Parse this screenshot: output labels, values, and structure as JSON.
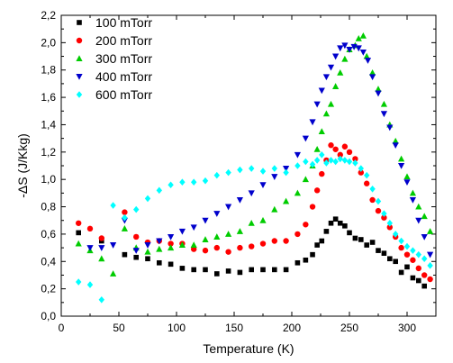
{
  "chart_data": {
    "type": "scatter",
    "title": "",
    "xlabel": "Temperature (K)",
    "ylabel": "-ΔS (J/Kkg)",
    "xlim": [
      0,
      325
    ],
    "ylim": [
      0.0,
      2.2
    ],
    "xticks": [
      0,
      50,
      100,
      150,
      200,
      250,
      300
    ],
    "xtick_labels": [
      "0",
      "50",
      "100",
      "150",
      "200",
      "250",
      "300"
    ],
    "yticks": [
      0.0,
      0.2,
      0.4,
      0.6,
      0.8,
      1.0,
      1.2,
      1.4,
      1.6,
      1.8,
      2.0,
      2.2
    ],
    "ytick_labels": [
      "0,0",
      "0,2",
      "0,4",
      "0,6",
      "0,8",
      "1,0",
      "1,2",
      "1,4",
      "1,6",
      "1,8",
      "2,0",
      "2,2"
    ],
    "grid": false,
    "legend_position": "top-left",
    "series": [
      {
        "name": "100 mTorr",
        "color": "#000000",
        "marker": "square",
        "points": [
          [
            15,
            0.61
          ],
          [
            35,
            0.55
          ],
          [
            55,
            0.45
          ],
          [
            65,
            0.43
          ],
          [
            75,
            0.42
          ],
          [
            85,
            0.39
          ],
          [
            95,
            0.38
          ],
          [
            105,
            0.35
          ],
          [
            115,
            0.34
          ],
          [
            125,
            0.34
          ],
          [
            135,
            0.31
          ],
          [
            145,
            0.33
          ],
          [
            155,
            0.32
          ],
          [
            165,
            0.34
          ],
          [
            175,
            0.34
          ],
          [
            185,
            0.34
          ],
          [
            195,
            0.34
          ],
          [
            205,
            0.39
          ],
          [
            212,
            0.41
          ],
          [
            218,
            0.45
          ],
          [
            222,
            0.52
          ],
          [
            226,
            0.55
          ],
          [
            230,
            0.62
          ],
          [
            234,
            0.68
          ],
          [
            238,
            0.71
          ],
          [
            242,
            0.68
          ],
          [
            246,
            0.66
          ],
          [
            250,
            0.61
          ],
          [
            255,
            0.57
          ],
          [
            260,
            0.56
          ],
          [
            265,
            0.52
          ],
          [
            270,
            0.54
          ],
          [
            275,
            0.48
          ],
          [
            280,
            0.46
          ],
          [
            285,
            0.42
          ],
          [
            290,
            0.4
          ],
          [
            295,
            0.32
          ],
          [
            300,
            0.36
          ],
          [
            305,
            0.28
          ],
          [
            310,
            0.26
          ],
          [
            315,
            0.22
          ]
        ]
      },
      {
        "name": "200 mTorr",
        "color": "#ff0000",
        "marker": "circle",
        "points": [
          [
            15,
            0.68
          ],
          [
            25,
            0.64
          ],
          [
            35,
            0.57
          ],
          [
            55,
            0.76
          ],
          [
            65,
            0.58
          ],
          [
            75,
            0.54
          ],
          [
            85,
            0.55
          ],
          [
            95,
            0.53
          ],
          [
            105,
            0.53
          ],
          [
            115,
            0.49
          ],
          [
            125,
            0.48
          ],
          [
            135,
            0.5
          ],
          [
            145,
            0.47
          ],
          [
            155,
            0.5
          ],
          [
            165,
            0.51
          ],
          [
            175,
            0.53
          ],
          [
            185,
            0.55
          ],
          [
            195,
            0.55
          ],
          [
            205,
            0.6
          ],
          [
            212,
            0.67
          ],
          [
            218,
            0.8
          ],
          [
            222,
            0.92
          ],
          [
            226,
            1.04
          ],
          [
            230,
            1.14
          ],
          [
            234,
            1.25
          ],
          [
            238,
            1.22
          ],
          [
            242,
            1.18
          ],
          [
            246,
            1.24
          ],
          [
            250,
            1.2
          ],
          [
            255,
            1.15
          ],
          [
            260,
            1.05
          ],
          [
            265,
            0.97
          ],
          [
            270,
            0.85
          ],
          [
            275,
            0.77
          ],
          [
            280,
            0.72
          ],
          [
            285,
            0.65
          ],
          [
            290,
            0.58
          ],
          [
            295,
            0.5
          ],
          [
            300,
            0.45
          ],
          [
            305,
            0.41
          ],
          [
            310,
            0.35
          ],
          [
            315,
            0.3
          ],
          [
            320,
            0.27
          ]
        ]
      },
      {
        "name": "300 mTorr",
        "color": "#00cc00",
        "marker": "triangle-up",
        "points": [
          [
            15,
            0.53
          ],
          [
            25,
            0.48
          ],
          [
            35,
            0.42
          ],
          [
            45,
            0.31
          ],
          [
            55,
            0.64
          ],
          [
            65,
            0.5
          ],
          [
            75,
            0.47
          ],
          [
            85,
            0.49
          ],
          [
            95,
            0.5
          ],
          [
            105,
            0.52
          ],
          [
            115,
            0.52
          ],
          [
            125,
            0.56
          ],
          [
            135,
            0.58
          ],
          [
            145,
            0.6
          ],
          [
            155,
            0.62
          ],
          [
            165,
            0.68
          ],
          [
            175,
            0.7
          ],
          [
            185,
            0.78
          ],
          [
            195,
            0.84
          ],
          [
            205,
            0.9
          ],
          [
            212,
            1.0
          ],
          [
            218,
            1.1
          ],
          [
            222,
            1.22
          ],
          [
            226,
            1.35
          ],
          [
            230,
            1.48
          ],
          [
            234,
            1.55
          ],
          [
            238,
            1.68
          ],
          [
            242,
            1.78
          ],
          [
            246,
            1.88
          ],
          [
            250,
            1.95
          ],
          [
            255,
            1.98
          ],
          [
            258,
            2.03
          ],
          [
            262,
            2.05
          ],
          [
            265,
            1.9
          ],
          [
            270,
            1.78
          ],
          [
            275,
            1.66
          ],
          [
            280,
            1.55
          ],
          [
            285,
            1.4
          ],
          [
            290,
            1.28
          ],
          [
            295,
            1.15
          ],
          [
            300,
            1.02
          ],
          [
            305,
            0.9
          ],
          [
            310,
            0.8
          ],
          [
            315,
            0.73
          ],
          [
            320,
            0.62
          ]
        ]
      },
      {
        "name": "400 mTorr",
        "color": "#0000cc",
        "marker": "triangle-down",
        "points": [
          [
            25,
            0.5
          ],
          [
            35,
            0.5
          ],
          [
            45,
            0.52
          ],
          [
            55,
            0.7
          ],
          [
            65,
            0.48
          ],
          [
            75,
            0.52
          ],
          [
            85,
            0.55
          ],
          [
            95,
            0.58
          ],
          [
            105,
            0.62
          ],
          [
            115,
            0.65
          ],
          [
            125,
            0.7
          ],
          [
            135,
            0.75
          ],
          [
            145,
            0.8
          ],
          [
            155,
            0.85
          ],
          [
            165,
            0.9
          ],
          [
            175,
            0.96
          ],
          [
            185,
            1.02
          ],
          [
            195,
            1.08
          ],
          [
            205,
            1.18
          ],
          [
            212,
            1.3
          ],
          [
            218,
            1.42
          ],
          [
            222,
            1.55
          ],
          [
            226,
            1.65
          ],
          [
            230,
            1.75
          ],
          [
            234,
            1.82
          ],
          [
            238,
            1.9
          ],
          [
            242,
            1.96
          ],
          [
            246,
            1.98
          ],
          [
            250,
            1.95
          ],
          [
            254,
            1.97
          ],
          [
            258,
            1.96
          ],
          [
            262,
            1.93
          ],
          [
            266,
            1.87
          ],
          [
            270,
            1.75
          ],
          [
            275,
            1.63
          ],
          [
            280,
            1.48
          ],
          [
            285,
            1.38
          ],
          [
            290,
            1.25
          ],
          [
            295,
            1.1
          ],
          [
            300,
            0.98
          ],
          [
            305,
            0.85
          ],
          [
            310,
            0.7
          ],
          [
            315,
            0.58
          ],
          [
            320,
            0.45
          ]
        ]
      },
      {
        "name": "600 mTorr",
        "color": "#00ffff",
        "marker": "diamond",
        "points": [
          [
            15,
            0.25
          ],
          [
            25,
            0.23
          ],
          [
            35,
            0.12
          ],
          [
            45,
            0.81
          ],
          [
            55,
            0.72
          ],
          [
            65,
            0.78
          ],
          [
            75,
            0.86
          ],
          [
            85,
            0.92
          ],
          [
            95,
            0.96
          ],
          [
            105,
            0.98
          ],
          [
            115,
            0.98
          ],
          [
            125,
            0.99
          ],
          [
            135,
            1.03
          ],
          [
            145,
            1.05
          ],
          [
            155,
            1.07
          ],
          [
            165,
            1.08
          ],
          [
            175,
            1.06
          ],
          [
            185,
            1.08
          ],
          [
            195,
            1.05
          ],
          [
            205,
            1.1
          ],
          [
            212,
            1.13
          ],
          [
            218,
            1.11
          ],
          [
            222,
            1.14
          ],
          [
            226,
            1.18
          ],
          [
            230,
            1.12
          ],
          [
            234,
            1.14
          ],
          [
            238,
            1.13
          ],
          [
            242,
            1.15
          ],
          [
            246,
            1.14
          ],
          [
            250,
            1.13
          ],
          [
            255,
            1.12
          ],
          [
            260,
            1.08
          ],
          [
            265,
            1.03
          ],
          [
            270,
            0.93
          ],
          [
            275,
            0.84
          ],
          [
            280,
            0.75
          ],
          [
            285,
            0.68
          ],
          [
            290,
            0.6
          ],
          [
            295,
            0.55
          ],
          [
            300,
            0.51
          ],
          [
            305,
            0.48
          ],
          [
            310,
            0.45
          ],
          [
            315,
            0.42
          ],
          [
            320,
            0.37
          ]
        ]
      }
    ]
  }
}
